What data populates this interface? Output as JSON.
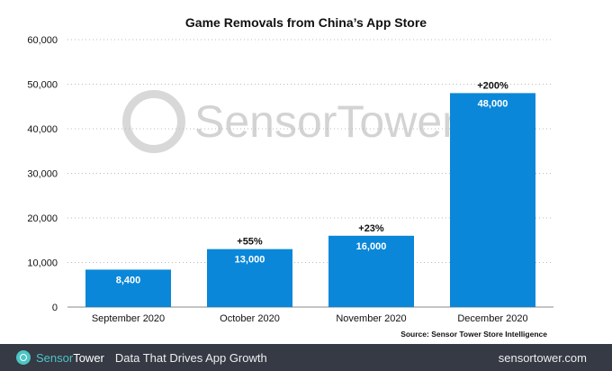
{
  "chart_data": {
    "type": "bar",
    "title": "Game Removals from China’s App Store",
    "categories": [
      "September 2020",
      "October 2020",
      "November 2020",
      "December 2020"
    ],
    "values": [
      8400,
      13000,
      16000,
      48000
    ],
    "value_labels": [
      "8,400",
      "13,000",
      "16,000",
      "48,000"
    ],
    "change_labels": [
      "",
      "+55%",
      "+23%",
      "+200%"
    ],
    "yticks": [
      "0",
      "10,000",
      "20,000",
      "30,000",
      "40,000",
      "50,000",
      "60,000"
    ],
    "ylim": [
      0,
      60000
    ],
    "xlabel": "",
    "ylabel": "",
    "grid": true,
    "bar_color": "#0a87d8"
  },
  "watermark": "SensorTower",
  "source": "Source: Sensor Tower Store Intelligence",
  "footer": {
    "brand_a": "Sensor",
    "brand_b": "Tower",
    "tagline": "Data That Drives App Growth",
    "site": "sensortower.com"
  }
}
